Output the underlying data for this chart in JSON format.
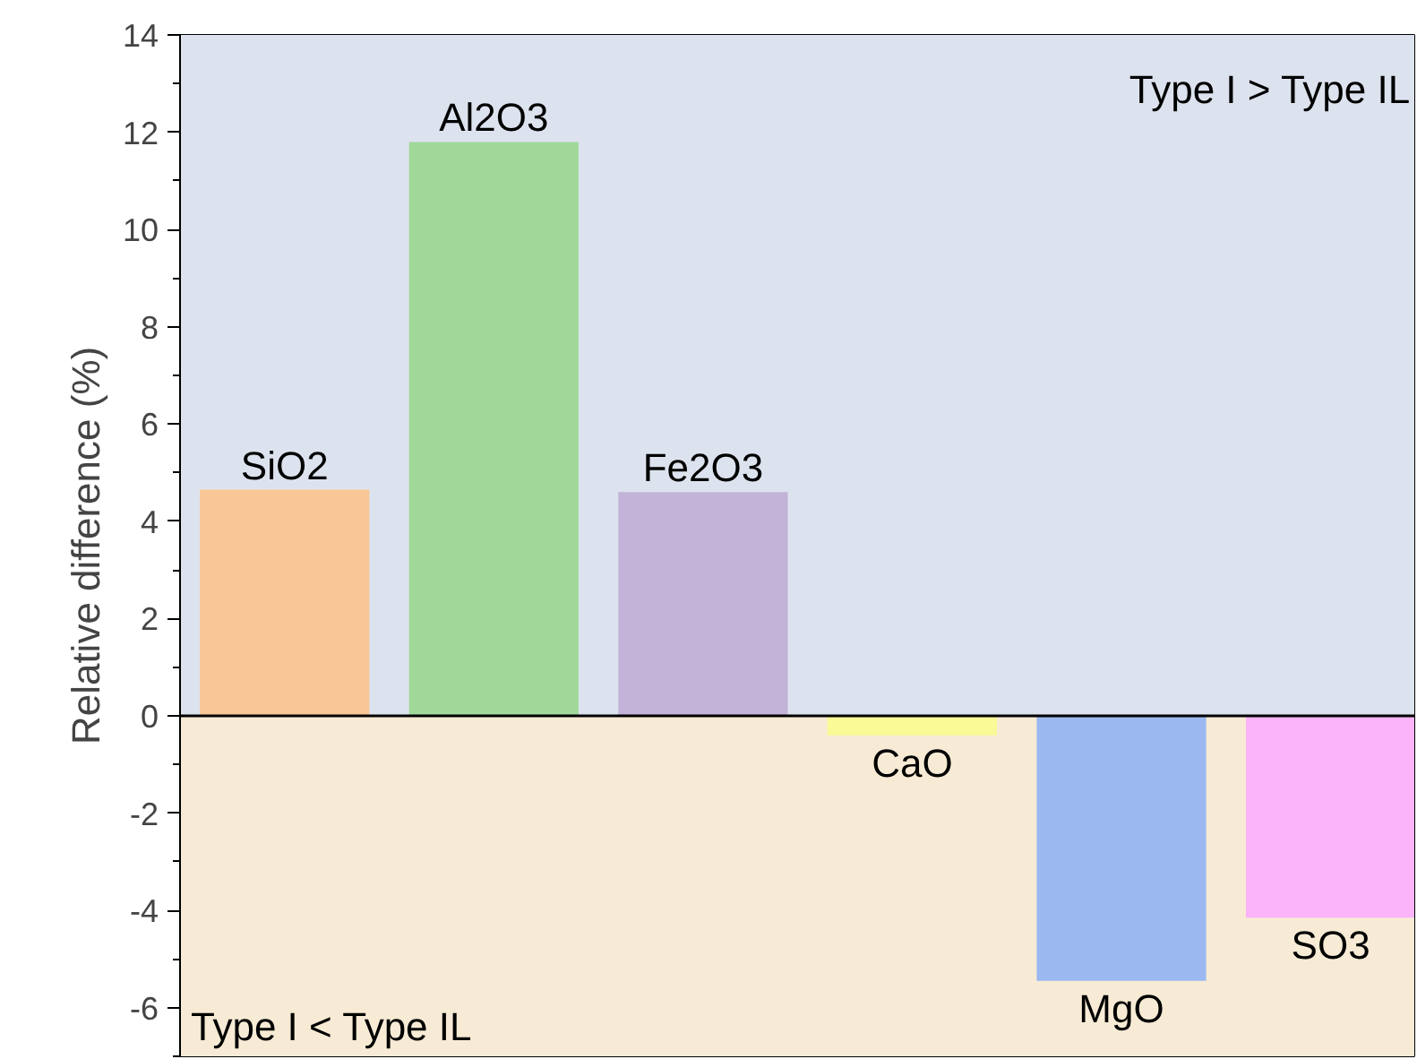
{
  "chart_data": {
    "type": "bar",
    "ylabel": "Relative difference (%)",
    "categories": [
      "SiO2",
      "Al2O3",
      "Fe2O3",
      "CaO",
      "MgO",
      "SO3"
    ],
    "values": [
      4.65,
      11.8,
      4.6,
      -0.4,
      -5.45,
      -4.15
    ],
    "colors": [
      "#f9c795",
      "#a0d89a",
      "#c3b3d8",
      "#fafa96",
      "#9bb8f0",
      "#fbb3f9"
    ],
    "ylim": [
      -7,
      14
    ],
    "yticks": [
      -6,
      -4,
      -2,
      0,
      2,
      4,
      6,
      8,
      10,
      12,
      14
    ],
    "bands": [
      {
        "axis": "y",
        "from": 0,
        "to": 14,
        "color": "#dde3ee"
      },
      {
        "axis": "y",
        "from": -7,
        "to": 0,
        "color": "#f7ebd5"
      }
    ],
    "ref_lines": [
      {
        "axis": "y",
        "value": 0,
        "color": "#000000"
      }
    ],
    "annotations": [
      "Type I > Type IL",
      "Type I < Type IL"
    ],
    "tick_labels": "y"
  }
}
